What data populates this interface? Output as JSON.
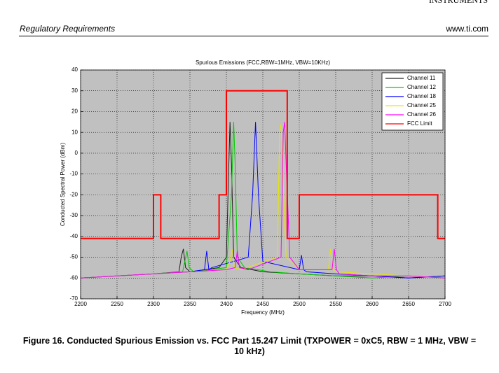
{
  "header": {
    "brand": "INSTRUMENTS",
    "section": "Regulatory Requirements",
    "website": "www.ti.com"
  },
  "caption": "Figure 16. Conducted Spurious Emission vs. FCC Part 15.247 Limit (TXPOWER = 0xC5, RBW = 1 MHz, VBW = 10 kHz)",
  "chart_data": {
    "type": "line",
    "title": "Spurious Emissions (FCC,RBW=1MHz, VBW=10KHz)",
    "xlabel": "Frequency (MHz)",
    "ylabel": "Conducted Spectral Power (dBm)",
    "xlim": [
      2200,
      2700
    ],
    "xticks": [
      2200,
      2250,
      2300,
      2350,
      2400,
      2450,
      2500,
      2550,
      2600,
      2650,
      2700
    ],
    "ylim": [
      -70,
      40
    ],
    "yticks": [
      40,
      30,
      20,
      10,
      0,
      -10,
      -20,
      -30,
      -40,
      -50,
      -60,
      -70
    ],
    "grid": true,
    "legend": "upper right",
    "background": "#c0c0c0",
    "series": [
      {
        "name": "Channel 11",
        "color": "#202020",
        "x": [
          2200,
          2250,
          2300,
          2335,
          2338,
          2341,
          2344,
          2350,
          2390,
          2400,
          2403,
          2405,
          2407,
          2410,
          2420,
          2450,
          2500,
          2550,
          2600,
          2650,
          2700
        ],
        "values": [
          -60,
          -59,
          -58,
          -57,
          -50,
          -46,
          -55,
          -57,
          -55,
          -50,
          -10,
          15,
          -5,
          -50,
          -55,
          -57,
          -58,
          -59,
          -59,
          -60,
          -59
        ]
      },
      {
        "name": "Channel 12",
        "color": "#00cc00",
        "x": [
          2200,
          2250,
          2300,
          2340,
          2343,
          2346,
          2349,
          2355,
          2400,
          2407,
          2410,
          2412,
          2415,
          2425,
          2460,
          2500,
          2550,
          2600,
          2650,
          2700
        ],
        "values": [
          -60,
          -59,
          -58,
          -57,
          -52,
          -47,
          -55,
          -57,
          -55,
          -20,
          15,
          -5,
          -50,
          -55,
          -57,
          -58,
          -59,
          -60,
          -59,
          -60
        ]
      },
      {
        "name": "Channel 18",
        "color": "#0000ff",
        "x": [
          2200,
          2250,
          2300,
          2350,
          2370,
          2373,
          2376,
          2380,
          2430,
          2436,
          2440,
          2444,
          2450,
          2500,
          2503,
          2506,
          2510,
          2550,
          2600,
          2650,
          2700
        ],
        "values": [
          -60,
          -59,
          -58,
          -57,
          -56,
          -47,
          -56,
          -55,
          -50,
          -20,
          15,
          -20,
          -52,
          -56,
          -49,
          -56,
          -57,
          -58,
          -59,
          -60,
          -59
        ]
      },
      {
        "name": "Channel 25",
        "color": "#e6e600",
        "x": [
          2200,
          2250,
          2300,
          2350,
          2400,
          2405,
          2408,
          2411,
          2420,
          2470,
          2473,
          2475,
          2477,
          2482,
          2500,
          2540,
          2543,
          2546,
          2550,
          2600,
          2650,
          2700
        ],
        "values": [
          -60,
          -59,
          -58,
          -57,
          -56,
          -52,
          -46,
          -55,
          -56,
          -50,
          10,
          14,
          -5,
          -50,
          -56,
          -56,
          -46,
          -56,
          -57,
          -58,
          -59,
          -60
        ]
      },
      {
        "name": "Channel 26",
        "color": "#ff00ff",
        "x": [
          2200,
          2250,
          2300,
          2350,
          2400,
          2412,
          2415,
          2418,
          2430,
          2475,
          2478,
          2480,
          2482,
          2487,
          2500,
          2545,
          2548,
          2551,
          2555,
          2600,
          2650,
          2700
        ],
        "values": [
          -60,
          -59,
          -58,
          -57,
          -56,
          -55,
          -47,
          -55,
          -56,
          -50,
          10,
          15,
          -5,
          -50,
          -56,
          -56,
          -46,
          -56,
          -58,
          -59,
          -59,
          -60
        ]
      },
      {
        "name": "FCC Limit",
        "color": "#ff0000",
        "x": [
          2200,
          2300,
          2300,
          2310,
          2310,
          2390,
          2390,
          2400,
          2400,
          2483.5,
          2483.5,
          2500,
          2500,
          2690,
          2690,
          2700
        ],
        "values": [
          -41,
          -41,
          -20,
          -20,
          -41,
          -41,
          -20,
          -20,
          30,
          30,
          -41,
          -41,
          -20,
          -20,
          -41,
          -41
        ]
      }
    ]
  }
}
